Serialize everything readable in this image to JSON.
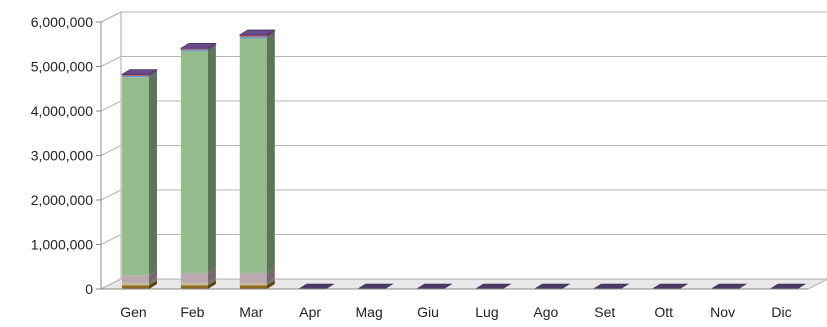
{
  "chart_data": {
    "type": "bar",
    "stacked": true,
    "three_d": true,
    "title": "",
    "xlabel": "",
    "ylabel": "",
    "ylim": [
      0,
      6000000
    ],
    "yticks": [
      0,
      1000000,
      2000000,
      3000000,
      4000000,
      5000000,
      6000000
    ],
    "ytick_labels": [
      "0",
      "1,000,000",
      "2,000,000",
      "3,000,000",
      "4,000,000",
      "5,000,000",
      "6,000,000"
    ],
    "grid": true,
    "legend": "none",
    "categories": [
      "Gen",
      "Feb",
      "Mar",
      "Apr",
      "Mag",
      "Giu",
      "Lug",
      "Ago",
      "Set",
      "Ott",
      "Nov",
      "Dic"
    ],
    "series": [
      {
        "color": "#8B6A1E",
        "values": [
          80000,
          80000,
          80000,
          0,
          0,
          0,
          0,
          0,
          0,
          0,
          0,
          0
        ]
      },
      {
        "color": "#C8B99A",
        "values": [
          60000,
          60000,
          60000,
          0,
          0,
          0,
          0,
          0,
          0,
          0,
          0,
          0
        ]
      },
      {
        "color": "#BCA9B0",
        "values": [
          170000,
          220000,
          220000,
          0,
          0,
          0,
          0,
          0,
          0,
          0,
          0,
          0
        ]
      },
      {
        "color": "#94BB8C",
        "values": [
          4450000,
          4980000,
          5270000,
          0,
          0,
          0,
          0,
          0,
          0,
          0,
          0,
          0
        ]
      },
      {
        "color": "#6E9BC4",
        "values": [
          30000,
          40000,
          40000,
          0,
          0,
          0,
          0,
          0,
          0,
          0,
          0,
          0
        ]
      },
      {
        "color": "#B5545E",
        "values": [
          20000,
          20000,
          30000,
          0,
          0,
          0,
          0,
          0,
          0,
          0,
          0,
          0
        ]
      },
      {
        "color": "#6A4A8A",
        "values": [
          10000,
          10000,
          10000,
          0,
          0,
          0,
          0,
          0,
          0,
          0,
          0,
          0
        ]
      }
    ]
  }
}
